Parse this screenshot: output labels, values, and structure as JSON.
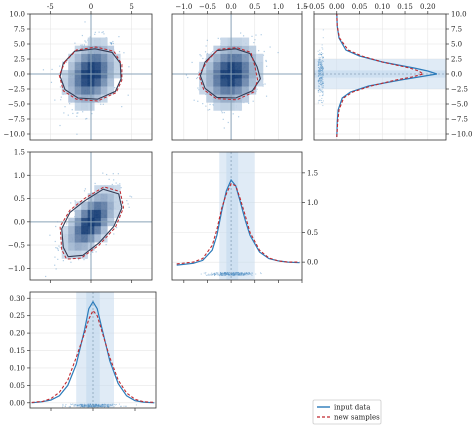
{
  "colors": {
    "input": "#2b7bba",
    "samples": "#c0282e",
    "hist_dark": "#08306b",
    "hist_light": "#dbe9f6",
    "band": "#c6dbef",
    "scatter": "#4f8fc4",
    "guide": "#8aa3b8",
    "grid": "#e6e6e6"
  },
  "chart_data": [
    {
      "type": "heatmap",
      "panel": "row1-col1",
      "xlim": [
        -7.5,
        7.5
      ],
      "ylim": [
        -11,
        10
      ],
      "xticks": [
        -5,
        0,
        5
      ],
      "xtick_position": "top",
      "yticks": [
        10.0,
        7.5,
        5.0,
        2.5,
        0.0,
        -2.5,
        -5.0,
        -7.5,
        -10.0
      ],
      "ytick_labels": [
        "10.0",
        "7.5",
        "5.0",
        "2.5",
        "0.0",
        "−2.5",
        "−5.0",
        "−7.5",
        "−10.0"
      ],
      "guide": [
        0,
        0
      ],
      "center": [
        0,
        0
      ],
      "spread": [
        1.6,
        2.7
      ],
      "correlation": 0.25,
      "contour_input": [
        [
          -3.4,
          1.8
        ],
        [
          -2.0,
          3.8
        ],
        [
          0.5,
          4.2
        ],
        [
          2.6,
          3.6
        ],
        [
          3.6,
          1.8
        ],
        [
          3.7,
          -0.8
        ],
        [
          3.0,
          -2.9
        ],
        [
          0.8,
          -4.2
        ],
        [
          -1.6,
          -4.0
        ],
        [
          -3.2,
          -2.6
        ],
        [
          -3.8,
          -0.4
        ]
      ],
      "contour_samples": [
        [
          -3.2,
          2.0
        ],
        [
          -1.8,
          4.0
        ],
        [
          0.6,
          4.5
        ],
        [
          2.8,
          3.8
        ],
        [
          3.8,
          1.6
        ],
        [
          3.8,
          -1.0
        ],
        [
          3.1,
          -3.1
        ],
        [
          0.8,
          -4.5
        ],
        [
          -1.8,
          -4.2
        ],
        [
          -3.4,
          -2.8
        ],
        [
          -3.9,
          -0.2
        ]
      ]
    },
    {
      "type": "heatmap",
      "panel": "row1-col2",
      "xlim": [
        -1.25,
        1.5
      ],
      "ylim": [
        -11,
        10
      ],
      "xticks": [
        -1.0,
        -0.5,
        0.0,
        0.5,
        1.0,
        1.5
      ],
      "xtick_labels": [
        "−1.0",
        "−0.5",
        "0.0",
        "0.5",
        "1.0",
        "1.5"
      ],
      "xtick_position": "top",
      "guide": [
        0,
        0
      ],
      "center": [
        0,
        0
      ],
      "spread": [
        0.3,
        2.7
      ],
      "correlation": 0.15,
      "contour_input": [
        [
          -0.55,
          2.0
        ],
        [
          -0.3,
          3.9
        ],
        [
          0.1,
          4.2
        ],
        [
          0.4,
          3.4
        ],
        [
          0.55,
          1.2
        ],
        [
          0.62,
          -0.8
        ],
        [
          0.45,
          -2.8
        ],
        [
          0.1,
          -4.0
        ],
        [
          -0.3,
          -3.9
        ],
        [
          -0.55,
          -2.4
        ],
        [
          -0.65,
          -0.3
        ]
      ],
      "contour_samples": [
        [
          -0.5,
          2.2
        ],
        [
          -0.28,
          4.1
        ],
        [
          0.12,
          4.4
        ],
        [
          0.42,
          3.6
        ],
        [
          0.5,
          1.4
        ],
        [
          0.56,
          -1.0
        ],
        [
          0.48,
          -3.0
        ],
        [
          0.12,
          -4.3
        ],
        [
          -0.32,
          -4.1
        ],
        [
          -0.58,
          -2.6
        ],
        [
          -0.68,
          -0.2
        ]
      ]
    },
    {
      "type": "line",
      "panel": "row1-col3",
      "orientation": "horizontal",
      "xlim": [
        -0.05,
        0.24
      ],
      "ylim": [
        -11,
        10
      ],
      "xticks": [
        -0.05,
        0.0,
        0.05,
        0.1,
        0.15,
        0.2
      ],
      "xtick_labels": [
        "−0.05",
        "0.00",
        "0.05",
        "0.10",
        "0.15",
        "0.20"
      ],
      "xtick_position": "top",
      "yticks": [
        10.0,
        7.5,
        5.0,
        2.5,
        0.0,
        -2.5,
        -5.0,
        -7.5,
        -10.0
      ],
      "ytick_labels": [
        "10.0",
        "7.5",
        "5.0",
        "2.5",
        "0.0",
        "−2.5",
        "−5.0",
        "−7.5",
        "−10.0"
      ],
      "ytick_position": "right",
      "peak": 0.0,
      "band": [
        -2.5,
        2.5
      ],
      "inner_band": [
        -0.6,
        0.6
      ],
      "series": [
        {
          "y": [
            -10.5,
            -8,
            -6,
            -4,
            -3,
            -2,
            -1,
            -0.5,
            0,
            0.5,
            1,
            2,
            3,
            4,
            6,
            8,
            10
          ],
          "x": [
            0.0,
            0.001,
            0.003,
            0.012,
            0.03,
            0.07,
            0.14,
            0.18,
            0.22,
            0.2,
            0.17,
            0.1,
            0.05,
            0.02,
            0.005,
            0.001,
            0.0
          ]
        },
        {
          "y": [
            -10.5,
            -8,
            -6,
            -4,
            -3,
            -2,
            -1,
            -0.5,
            0,
            0.5,
            1,
            2,
            3,
            4,
            6,
            8,
            10
          ],
          "x": [
            0.0,
            0.002,
            0.005,
            0.015,
            0.035,
            0.075,
            0.13,
            0.165,
            0.19,
            0.18,
            0.16,
            0.1,
            0.055,
            0.025,
            0.006,
            0.001,
            0.0
          ]
        }
      ]
    },
    {
      "type": "heatmap",
      "panel": "row2-col1",
      "xlim": [
        -7.5,
        7.5
      ],
      "ylim": [
        -1.25,
        1.5
      ],
      "yticks": [
        1.5,
        1.0,
        0.5,
        0.0,
        -0.5,
        -1.0
      ],
      "ytick_labels": [
        "1.5",
        "1.0",
        "0.5",
        "0.0",
        "−0.5",
        "−1.0"
      ],
      "guide": [
        0,
        0
      ],
      "center": [
        0,
        0
      ],
      "spread": [
        1.6,
        0.35
      ],
      "correlation": 0.6,
      "contour_input": [
        [
          -3.4,
          -0.55
        ],
        [
          -3.6,
          -0.15
        ],
        [
          -2.6,
          0.2
        ],
        [
          -0.8,
          0.45
        ],
        [
          1.5,
          0.7
        ],
        [
          3.4,
          0.6
        ],
        [
          3.8,
          0.3
        ],
        [
          2.8,
          -0.1
        ],
        [
          1.0,
          -0.45
        ],
        [
          -1.0,
          -0.72
        ],
        [
          -2.8,
          -0.75
        ]
      ],
      "contour_samples": [
        [
          -3.6,
          -0.6
        ],
        [
          -3.8,
          -0.1
        ],
        [
          -2.6,
          0.25
        ],
        [
          -0.8,
          0.5
        ],
        [
          1.6,
          0.75
        ],
        [
          3.6,
          0.65
        ],
        [
          4.0,
          0.3
        ],
        [
          3.0,
          -0.12
        ],
        [
          1.0,
          -0.5
        ],
        [
          -1.2,
          -0.78
        ],
        [
          -3.0,
          -0.8
        ]
      ]
    },
    {
      "type": "line",
      "panel": "row2-col2",
      "xlim": [
        -1.25,
        1.5
      ],
      "ylim": [
        -0.3,
        1.85
      ],
      "yticks": [
        0.0,
        0.5,
        1.0,
        1.5
      ],
      "ytick_labels": [
        "0.0",
        "0.5",
        "1.0",
        "1.5"
      ],
      "ytick_position": "right",
      "guide": 0.0,
      "band": [
        -0.25,
        0.5
      ],
      "inner_band": [
        -0.1,
        0.15
      ],
      "scatter_level": -0.2,
      "series": [
        {
          "x": [
            -1.15,
            -0.8,
            -0.6,
            -0.4,
            -0.3,
            -0.2,
            -0.1,
            0.0,
            0.1,
            0.2,
            0.3,
            0.4,
            0.6,
            0.8,
            1.0,
            1.2,
            1.45
          ],
          "y": [
            -0.05,
            -0.02,
            0.03,
            0.2,
            0.45,
            0.85,
            1.2,
            1.38,
            1.28,
            1.0,
            0.7,
            0.45,
            0.17,
            0.06,
            0.02,
            0.0,
            -0.01
          ]
        },
        {
          "x": [
            -1.15,
            -0.8,
            -0.6,
            -0.4,
            -0.3,
            -0.2,
            -0.1,
            0.0,
            0.1,
            0.2,
            0.3,
            0.4,
            0.6,
            0.8,
            1.0,
            1.2,
            1.45
          ],
          "y": [
            -0.03,
            0.0,
            0.06,
            0.28,
            0.55,
            0.9,
            1.15,
            1.32,
            1.28,
            1.05,
            0.78,
            0.5,
            0.2,
            0.07,
            0.02,
            0.0,
            0.0
          ]
        }
      ]
    },
    {
      "type": "line",
      "panel": "row3-col1",
      "xlim": [
        -7.5,
        7.5
      ],
      "ylim": [
        -0.015,
        0.318
      ],
      "yticks": [
        0.3,
        0.25,
        0.2,
        0.15,
        0.1,
        0.05,
        0.0
      ],
      "ytick_labels": [
        "0.30",
        "0.25",
        "0.20",
        "0.15",
        "0.10",
        "0.05",
        "0.00"
      ],
      "guide": 0.0,
      "band": [
        -2.0,
        2.5
      ],
      "inner_band": [
        -0.8,
        0.8
      ],
      "scatter_level": -0.008,
      "series": [
        {
          "x": [
            -7.3,
            -6,
            -5,
            -4,
            -3,
            -2,
            -1,
            -0.5,
            0,
            0.5,
            1,
            2,
            3,
            4,
            5,
            6,
            7.3
          ],
          "y": [
            0.0,
            0.003,
            0.008,
            0.02,
            0.05,
            0.11,
            0.21,
            0.27,
            0.29,
            0.27,
            0.22,
            0.12,
            0.055,
            0.02,
            0.006,
            0.002,
            0.0
          ]
        },
        {
          "x": [
            -7.3,
            -6,
            -5,
            -4,
            -3,
            -2,
            -1,
            -0.5,
            0,
            0.5,
            1,
            2,
            3,
            4,
            5,
            6,
            7.3
          ],
          "y": [
            0.001,
            0.004,
            0.012,
            0.03,
            0.065,
            0.13,
            0.2,
            0.24,
            0.265,
            0.25,
            0.21,
            0.13,
            0.065,
            0.028,
            0.01,
            0.003,
            0.001
          ]
        }
      ]
    }
  ],
  "legend": {
    "entries": [
      {
        "label": "input data"
      },
      {
        "label": "new samples"
      }
    ]
  }
}
